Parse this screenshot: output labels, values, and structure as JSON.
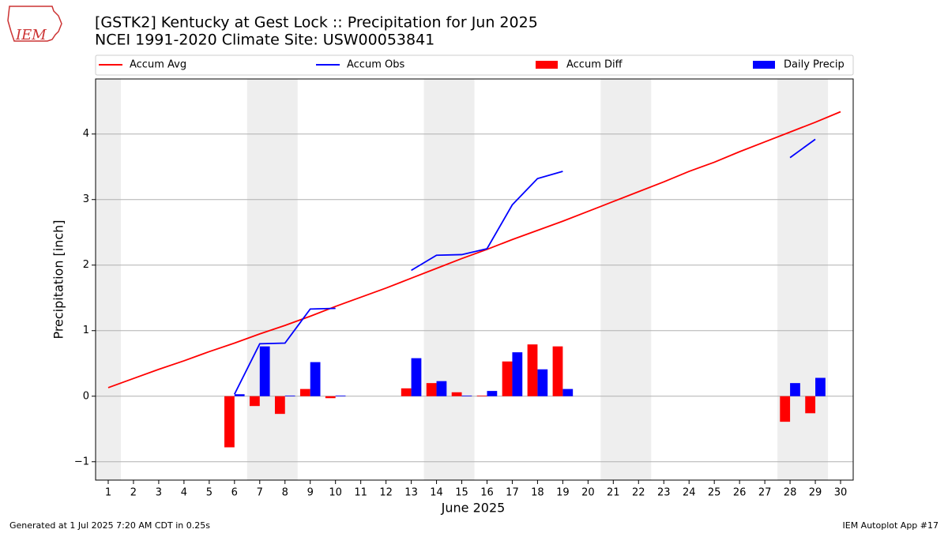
{
  "logo_text": "IEM",
  "chart_data": {
    "type": "combo",
    "title": "[GSTK2] Kentucky at Gest Lock :: Precipitation for Jun 2025",
    "subtitle": "NCEI 1991-2020 Climate Site: USW00053841",
    "x_label": "June 2025",
    "y_label": "Precipitation [inch]",
    "x": [
      1,
      2,
      3,
      4,
      5,
      6,
      7,
      8,
      9,
      10,
      11,
      12,
      13,
      14,
      15,
      16,
      17,
      18,
      19,
      20,
      21,
      22,
      23,
      24,
      25,
      26,
      27,
      28,
      29,
      30
    ],
    "series": [
      {
        "name": "Accum Avg",
        "style": "line",
        "color": "#ff0000",
        "values": [
          0.13,
          0.27,
          0.41,
          0.54,
          0.68,
          0.81,
          0.95,
          1.08,
          1.22,
          1.37,
          1.51,
          1.65,
          1.8,
          1.95,
          2.1,
          2.24,
          2.39,
          2.53,
          2.67,
          2.82,
          2.97,
          3.12,
          3.27,
          3.43,
          3.57,
          3.73,
          3.88,
          4.03,
          4.18,
          4.34
        ]
      },
      {
        "name": "Accum Obs",
        "style": "line",
        "color": "#0000ff",
        "values": [
          null,
          null,
          null,
          null,
          null,
          0.03,
          0.8,
          0.81,
          1.33,
          1.34,
          null,
          null,
          1.92,
          2.15,
          2.16,
          2.25,
          2.92,
          3.32,
          3.43,
          null,
          null,
          null,
          null,
          null,
          null,
          null,
          null,
          3.64,
          3.92,
          null
        ]
      },
      {
        "name": "Accum Diff",
        "style": "bar",
        "color": "#ff0000",
        "values": [
          null,
          null,
          null,
          null,
          null,
          -0.78,
          -0.15,
          -0.27,
          0.11,
          -0.03,
          null,
          null,
          0.12,
          0.2,
          0.06,
          0.01,
          0.53,
          0.79,
          0.76,
          null,
          null,
          null,
          null,
          null,
          null,
          null,
          null,
          -0.39,
          -0.26,
          null
        ]
      },
      {
        "name": "Daily Precip",
        "style": "bar",
        "color": "#0000ff",
        "values": [
          null,
          null,
          null,
          null,
          null,
          0.03,
          0.76,
          0.01,
          0.52,
          0.01,
          null,
          null,
          0.58,
          0.23,
          0.01,
          0.08,
          0.67,
          0.41,
          0.11,
          null,
          null,
          null,
          null,
          null,
          null,
          null,
          null,
          0.2,
          0.28,
          null
        ]
      }
    ],
    "shaded_spans": [
      [
        0.5,
        1.5
      ],
      [
        6.5,
        8.5
      ],
      [
        13.5,
        15.5
      ],
      [
        20.5,
        22.5
      ],
      [
        27.5,
        29.5
      ]
    ],
    "shade_color": "#eeeeee",
    "xlim": [
      0.5,
      30.5
    ],
    "xticks": [
      1,
      2,
      3,
      4,
      5,
      6,
      7,
      8,
      9,
      10,
      11,
      12,
      13,
      14,
      15,
      16,
      17,
      18,
      19,
      20,
      21,
      22,
      23,
      24,
      25,
      26,
      27,
      28,
      29,
      30
    ],
    "ylim": [
      -1.28,
      4.84
    ],
    "yticks": [
      {
        "value": -1,
        "label": "−1"
      },
      0,
      1,
      2,
      3,
      4
    ],
    "grid": true,
    "legend": "top",
    "footer_left": "Generated at 1 Jul 2025 7:20 AM CDT in 0.25s",
    "footer_right": "IEM Autoplot App #17"
  }
}
